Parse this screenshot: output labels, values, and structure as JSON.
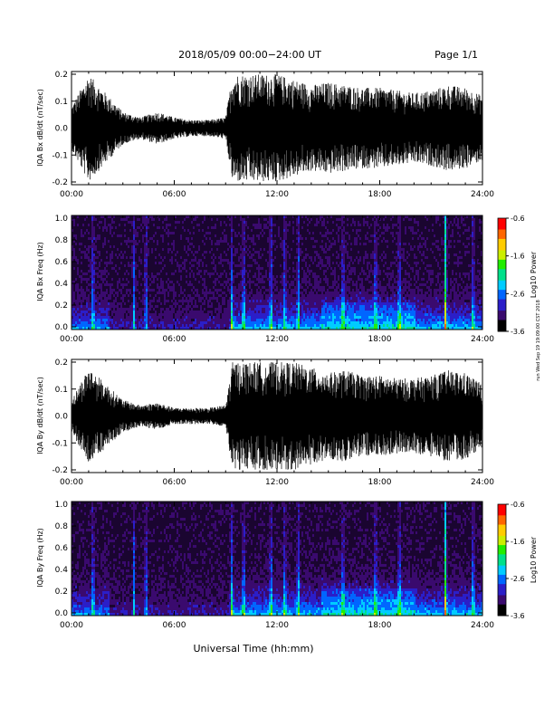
{
  "header": {
    "date_range": "2018/05/09  00:00−24:00 UT",
    "page": "Page 1/1"
  },
  "side_stamp": "run Wed Sep 19 19:09:00 CST 2018",
  "xaxis": {
    "label": "Universal Time (hh:mm)",
    "ticks": [
      "00:00",
      "06:00",
      "12:00",
      "18:00",
      "24:00"
    ],
    "range_hours": [
      0,
      24
    ]
  },
  "colorbar": {
    "label": "Log10 Power",
    "ticks": [
      "-0.6",
      "-1.6",
      "-2.6",
      "-3.6"
    ],
    "range": [
      -3.6,
      -0.6
    ],
    "colors": [
      "#000000",
      "#3a0a6e",
      "#2b1ec8",
      "#0066ff",
      "#00ccff",
      "#00e08a",
      "#22ee00",
      "#ccee00",
      "#ffcc00",
      "#ff6600",
      "#ff0000"
    ]
  },
  "chart_data": [
    {
      "type": "area",
      "ylabel": "IQA Bx dB/dt (nT/sec)",
      "ylim": [
        -0.2,
        0.2
      ],
      "yticks": [
        "0.2",
        "0.1",
        "0.0",
        "-0.1",
        "-0.2"
      ],
      "x_hours": [
        0,
        1,
        2,
        3,
        4,
        5,
        6,
        7,
        8,
        9,
        9.4,
        10,
        11,
        12,
        13,
        14,
        15,
        16,
        17,
        18,
        19,
        20,
        21,
        22,
        23,
        24
      ],
      "amplitude": [
        0.08,
        0.2,
        0.13,
        0.06,
        0.04,
        0.06,
        0.04,
        0.03,
        0.03,
        0.04,
        0.2,
        0.2,
        0.2,
        0.2,
        0.18,
        0.16,
        0.17,
        0.16,
        0.15,
        0.15,
        0.14,
        0.13,
        0.14,
        0.16,
        0.15,
        0.12
      ]
    },
    {
      "type": "heatmap",
      "ylabel": "IQA Bx Freq (Hz)",
      "ylim": [
        0,
        1.0
      ],
      "yticks": [
        "1.0",
        "0.8",
        "0.6",
        "0.4",
        "0.2",
        "0.0"
      ],
      "bursts_hours": [
        1.2,
        3.6,
        4.3,
        9.3,
        10.0,
        11.6,
        12.4,
        13.2,
        15.8,
        17.7,
        19.1,
        21.8,
        23.4
      ]
    },
    {
      "type": "area",
      "ylabel": "IQA By dB/dt (nT/sec)",
      "ylim": [
        -0.2,
        0.2
      ],
      "yticks": [
        "0.2",
        "0.1",
        "0.0",
        "-0.1",
        "-0.2"
      ],
      "x_hours": [
        0,
        1,
        2,
        3,
        4,
        5,
        6,
        7,
        8,
        9,
        9.4,
        10,
        11,
        12,
        13,
        14,
        15,
        16,
        17,
        18,
        19,
        20,
        21,
        22,
        23,
        24
      ],
      "amplitude": [
        0.06,
        0.18,
        0.12,
        0.06,
        0.04,
        0.05,
        0.03,
        0.03,
        0.03,
        0.04,
        0.2,
        0.2,
        0.2,
        0.2,
        0.2,
        0.18,
        0.16,
        0.17,
        0.15,
        0.15,
        0.14,
        0.14,
        0.15,
        0.17,
        0.16,
        0.12
      ]
    },
    {
      "type": "heatmap",
      "ylabel": "IQA By Freq (Hz)",
      "ylim": [
        0,
        1.0
      ],
      "yticks": [
        "1.0",
        "0.8",
        "0.6",
        "0.4",
        "0.2",
        "0.0"
      ],
      "bursts_hours": [
        1.2,
        3.6,
        4.3,
        9.3,
        10.0,
        11.6,
        12.4,
        13.2,
        15.8,
        17.7,
        19.1,
        21.8,
        23.4
      ]
    }
  ]
}
